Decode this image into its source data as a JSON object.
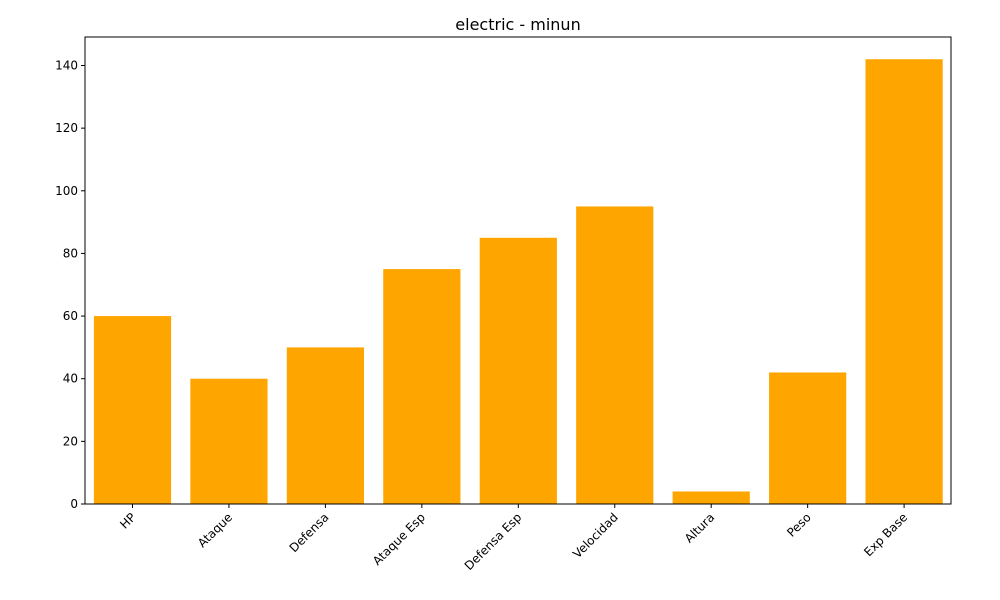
{
  "chart_data": {
    "type": "bar",
    "title": "electric - minun",
    "xlabel": "",
    "ylabel": "",
    "categories": [
      "HP",
      "Ataque",
      "Defensa",
      "Ataque Esp",
      "Defensa Esp",
      "Velocidad",
      "Altura",
      "Peso",
      "Exp Base"
    ],
    "values": [
      60,
      40,
      50,
      75,
      85,
      95,
      4,
      42,
      142
    ],
    "yticks": [
      0,
      20,
      40,
      60,
      80,
      100,
      120,
      140
    ],
    "ylim": [
      0,
      149.1
    ],
    "bar_color": "#ffa500",
    "grid": false,
    "legend": "none"
  }
}
